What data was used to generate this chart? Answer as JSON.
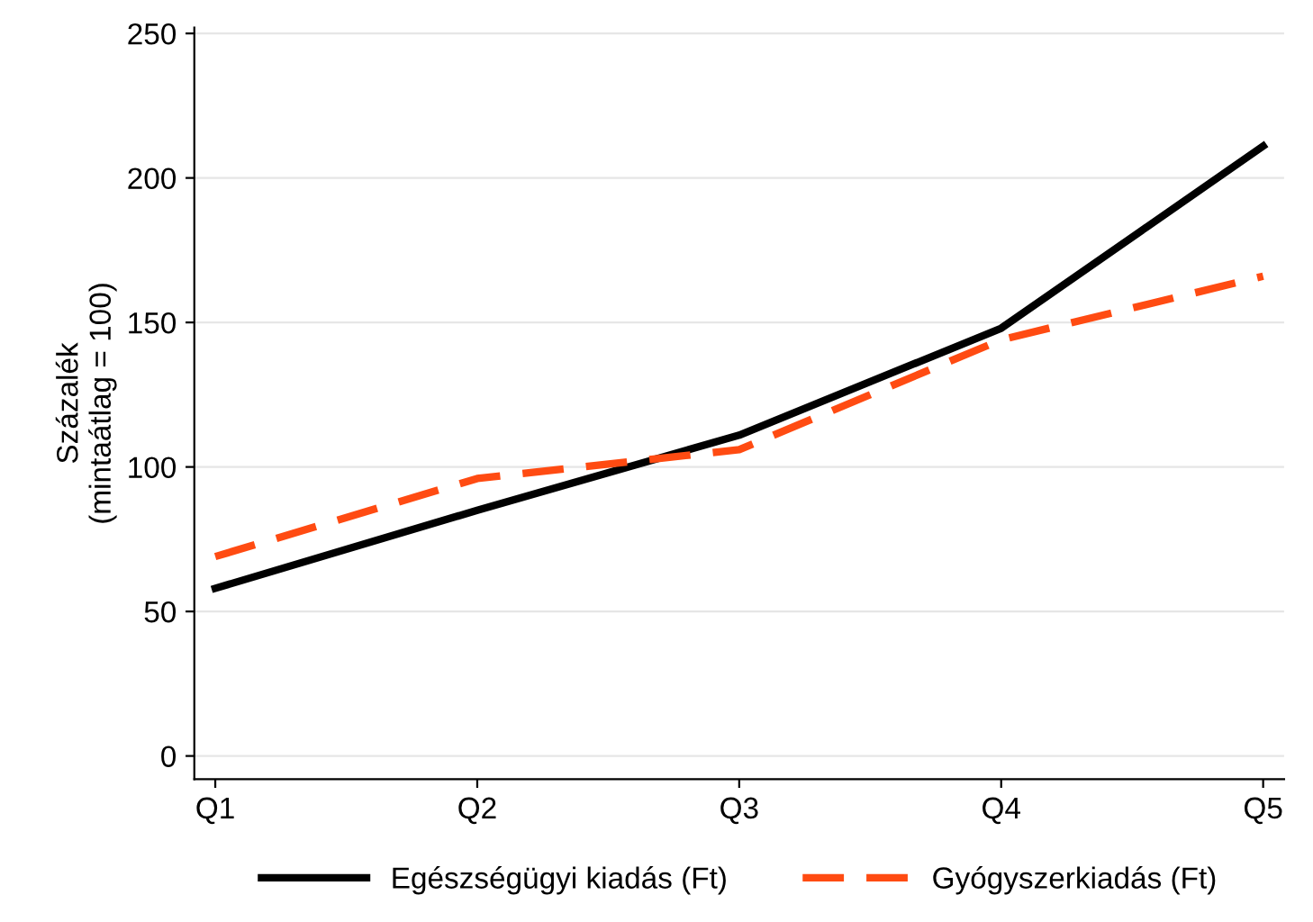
{
  "chart_data": {
    "type": "line",
    "ylabel": "Százalék\n(mintaátlag = 100)",
    "categories": [
      "Q1",
      "Q2",
      "Q3",
      "Q4",
      "Q5"
    ],
    "series": [
      {
        "name": "Egészségügyi kiadás (Ft)",
        "color": "#000000",
        "line_style": "solid",
        "values": [
          58,
          85,
          111,
          148,
          211
        ]
      },
      {
        "name": "Gyógyszerkiadás (Ft)",
        "color": "#ff4b12",
        "line_style": "dashed",
        "values": [
          69,
          96,
          106,
          144,
          166
        ]
      }
    ],
    "ylim": [
      -8,
      252
    ],
    "yticks": [
      0,
      50,
      100,
      150,
      200,
      250
    ],
    "grid": "y",
    "legend": "bottom",
    "marker": "none"
  }
}
